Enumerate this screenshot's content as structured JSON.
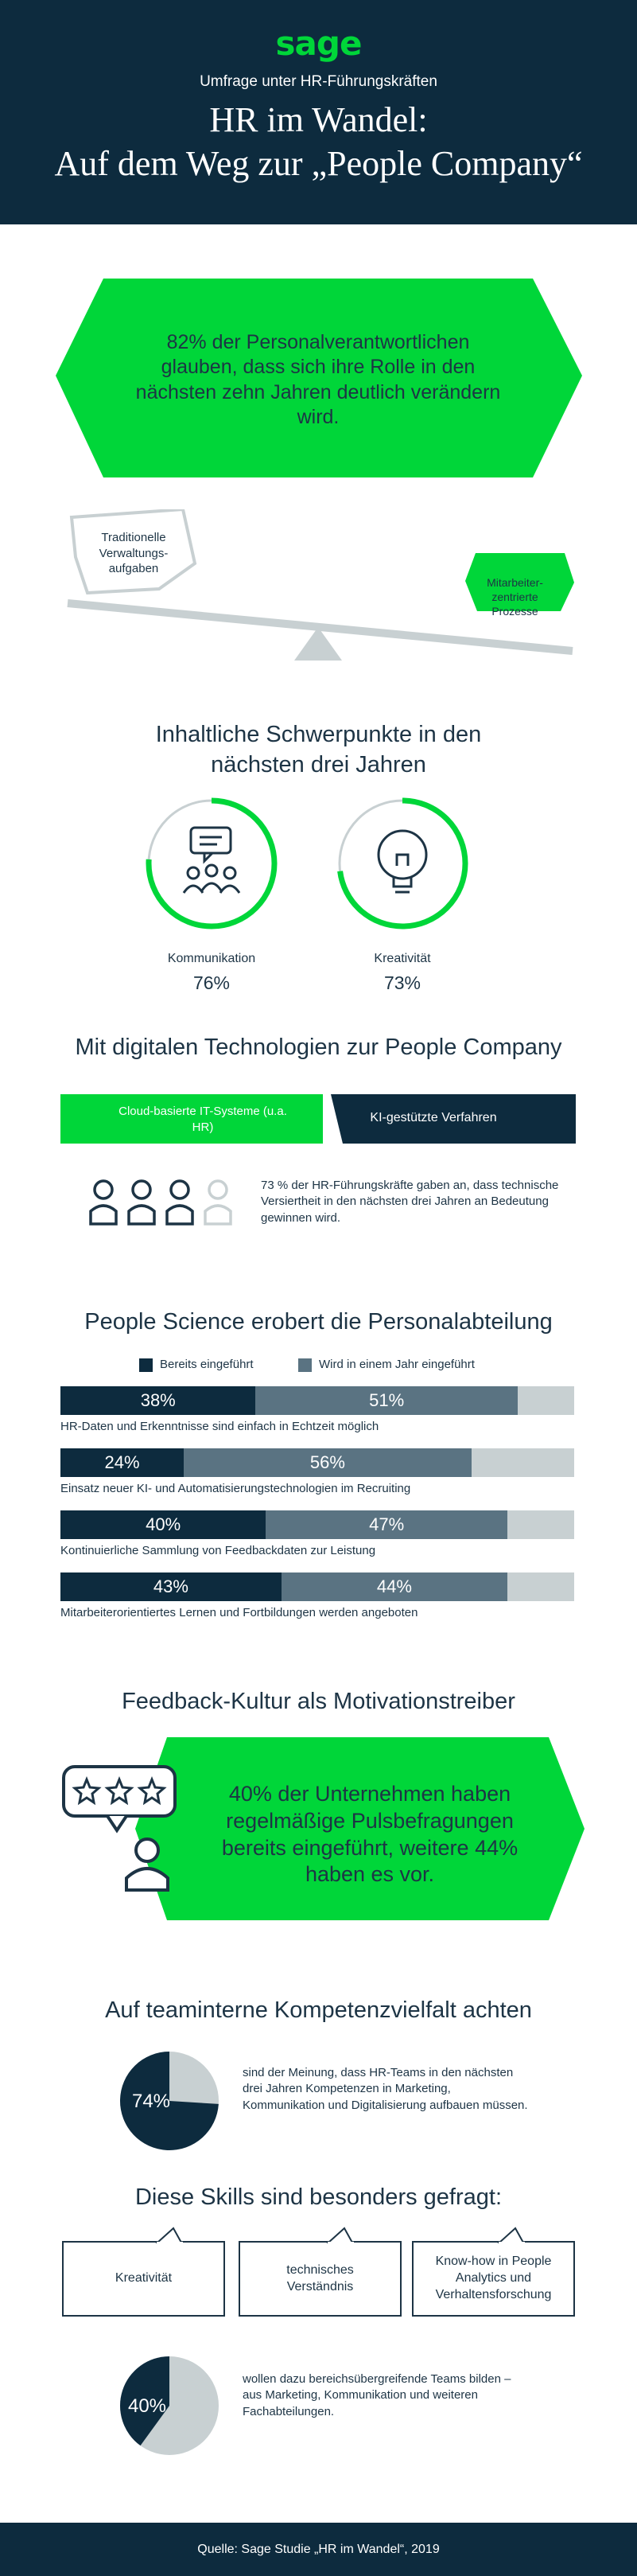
{
  "header": {
    "logo": "sage",
    "subtitle": "Umfrage unter HR-Führungskräften",
    "title_line1": "HR im Wandel:",
    "title_line2": "Auf dem Weg zur „People Company“"
  },
  "intro": {
    "statement": "82% der Personalverantwortlichen glauben, dass sich ihre Rolle in den nächsten zehn Jahren deutlich verändern wird.",
    "seesaw_left": "Traditionelle Verwaltungs-aufgaben",
    "seesaw_right": "Mitarbeiter-zentrierte Prozesse"
  },
  "focus": {
    "title": "Inhaltliche Schwerpunkte in den nächsten drei Jahren",
    "items": [
      {
        "label": "Kommunikation",
        "value": "76%",
        "fraction": 0.76,
        "icon": "people-speech-icon"
      },
      {
        "label": "Kreativität",
        "value": "73%",
        "fraction": 0.73,
        "icon": "lightbulb-icon"
      }
    ]
  },
  "digital": {
    "title": "Mit digitalen Technologien zur People Company",
    "left_label": "Cloud-basierte IT-Systeme (u.a. HR)",
    "right_label": "KI-gestützte Verfahren",
    "security_text": "73 % der HR-Führungskräfte gaben an, dass technische Versiertheit in den nächsten drei Jahren an Bedeutung gewinnen wird."
  },
  "science": {
    "title": "People Science erobert die Personalabteilung",
    "legend_done": "Bereits eingeführt",
    "legend_year": "Wird in einem Jahr eingeführt",
    "rows": [
      {
        "done": 38,
        "year": 51,
        "done_label": "38%",
        "year_label": "51%",
        "label": "HR-Daten und Erkenntnisse sind einfach in Echtzeit möglich"
      },
      {
        "done": 24,
        "year": 56,
        "done_label": "24%",
        "year_label": "56%",
        "label": "Einsatz neuer KI- und Automatisierungstechnologien im Recruiting"
      },
      {
        "done": 40,
        "year": 47,
        "done_label": "40%",
        "year_label": "47%",
        "label": "Kontinuierliche Sammlung von Feedbackdaten zur Leistung"
      },
      {
        "done": 43,
        "year": 44,
        "done_label": "43%",
        "year_label": "44%",
        "label": "Mitarbeiterorientiertes Lernen und Fortbildungen werden angeboten"
      }
    ]
  },
  "feedback": {
    "title": "Feedback-Kultur als Motivationstreiber",
    "statement": "40% der Unternehmen haben regelmäßige Pulsbefragungen bereits eingeführt, weitere 44% haben es vor."
  },
  "competence": {
    "title": "Auf teaminterne Kompetenzvielfalt achten",
    "pie1_label": "74%",
    "pie1_fraction": 0.74,
    "pie1_text": "sind der Meinung, dass HR-Teams in den nächsten drei Jahren Kompetenzen in Marketing, Kommunikation und Digitalisierung aufbauen müssen.",
    "skills_title": "Diese Skills sind besonders gefragt:",
    "skills": [
      "Kreativität",
      "technisches Verständnis",
      "Know-how in People Analytics und Verhaltensforschung"
    ],
    "pie2_label": "40%",
    "pie2_fraction": 0.4,
    "pie2_text": "wollen dazu bereichsübergreifende Teams bilden – aus Marketing, Kommunikation und weiteren Fachabteilungen."
  },
  "footer": {
    "source": "Quelle: Sage Studie „HR im Wandel“, 2019"
  },
  "colors": {
    "green": "#00d639",
    "navy": "#0d2b3e",
    "slate": "#5a7382",
    "grey": "#c8d0d2"
  }
}
